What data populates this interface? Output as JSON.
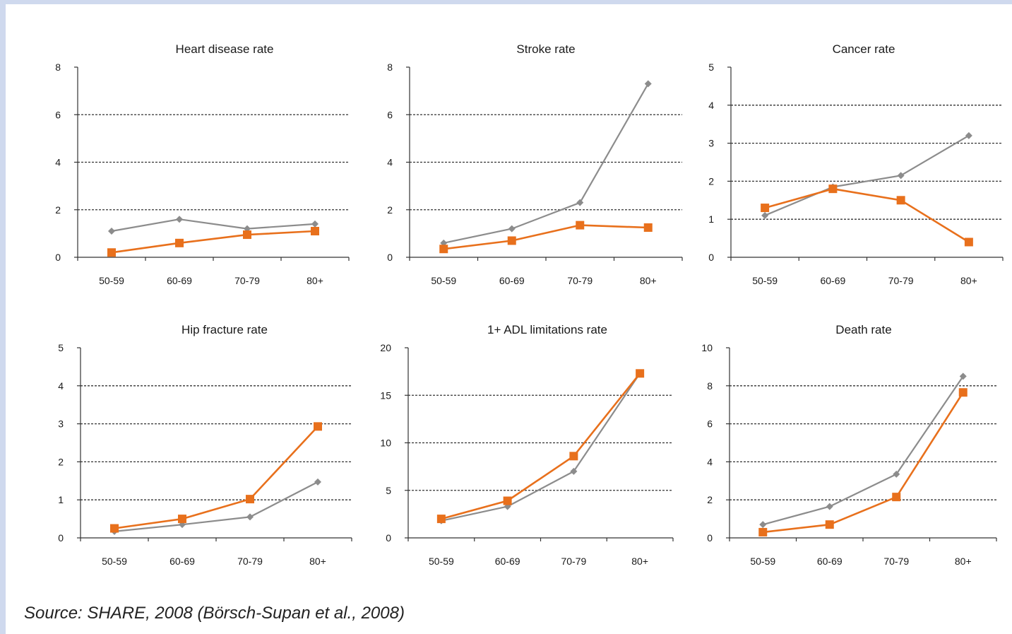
{
  "source": "Source: SHARE, 2008 (Börsch-Supan et al., 2008)",
  "colors": {
    "series_a": "#8c8c8c",
    "series_b": "#e8701c",
    "gridline": "#333333",
    "axis": "#333333"
  },
  "chart_data": [
    {
      "type": "line",
      "title": "Heart disease rate",
      "categories": [
        "50-59",
        "60-69",
        "70-79",
        "80+"
      ],
      "ylim": [
        0,
        8
      ],
      "yticks": [
        0,
        2,
        4,
        6,
        8
      ],
      "grid": "horizontal dashed",
      "legend": "none",
      "series": [
        {
          "values": [
            1.1,
            1.6,
            1.2,
            1.4
          ],
          "color": "#8c8c8c",
          "marker": "diamond"
        },
        {
          "values": [
            0.2,
            0.6,
            0.95,
            1.1
          ],
          "color": "#e8701c",
          "marker": "square"
        }
      ]
    },
    {
      "type": "line",
      "title": "Stroke rate",
      "categories": [
        "50-59",
        "60-69",
        "70-79",
        "80+"
      ],
      "ylim": [
        0,
        8
      ],
      "yticks": [
        0,
        2,
        4,
        6,
        8
      ],
      "grid": "horizontal dashed",
      "legend": "none",
      "series": [
        {
          "values": [
            0.6,
            1.2,
            2.3,
            7.3
          ],
          "color": "#8c8c8c",
          "marker": "diamond"
        },
        {
          "values": [
            0.35,
            0.7,
            1.35,
            1.25
          ],
          "color": "#e8701c",
          "marker": "square"
        }
      ]
    },
    {
      "type": "line",
      "title": "Cancer rate",
      "categories": [
        "50-59",
        "60-69",
        "70-79",
        "80+"
      ],
      "ylim": [
        0,
        5
      ],
      "yticks": [
        0,
        1,
        2,
        3,
        4,
        5
      ],
      "grid": "horizontal dashed",
      "legend": "none",
      "series": [
        {
          "values": [
            1.1,
            1.85,
            2.15,
            3.2
          ],
          "color": "#8c8c8c",
          "marker": "diamond"
        },
        {
          "values": [
            1.3,
            1.8,
            1.5,
            0.4
          ],
          "color": "#e8701c",
          "marker": "square"
        }
      ]
    },
    {
      "type": "line",
      "title": "Hip fracture rate",
      "categories": [
        "50-59",
        "60-69",
        "70-79",
        "80+"
      ],
      "ylim": [
        0,
        5
      ],
      "yticks": [
        0,
        1,
        2,
        3,
        4,
        5
      ],
      "grid": "horizontal dashed",
      "legend": "none",
      "series": [
        {
          "values": [
            0.17,
            0.35,
            0.55,
            1.47
          ],
          "color": "#8c8c8c",
          "marker": "diamond"
        },
        {
          "values": [
            0.25,
            0.5,
            1.02,
            2.93
          ],
          "color": "#e8701c",
          "marker": "square"
        }
      ]
    },
    {
      "type": "line",
      "title": "1+ ADL limitations rate",
      "categories": [
        "50-59",
        "60-69",
        "70-79",
        "80+"
      ],
      "ylim": [
        0,
        20
      ],
      "yticks": [
        0,
        5,
        10,
        15,
        20
      ],
      "grid": "horizontal dashed",
      "legend": "none",
      "series": [
        {
          "values": [
            1.8,
            3.3,
            7.0,
            17.3
          ],
          "color": "#8c8c8c",
          "marker": "diamond"
        },
        {
          "values": [
            2.0,
            3.9,
            8.6,
            17.3
          ],
          "color": "#e8701c",
          "marker": "square"
        }
      ]
    },
    {
      "type": "line",
      "title": "Death rate",
      "categories": [
        "50-59",
        "60-69",
        "70-79",
        "80+"
      ],
      "ylim": [
        0,
        10
      ],
      "yticks": [
        0,
        2,
        4,
        6,
        8,
        10
      ],
      "grid": "horizontal dashed",
      "legend": "none",
      "series": [
        {
          "values": [
            0.7,
            1.65,
            3.35,
            8.5
          ],
          "color": "#8c8c8c",
          "marker": "diamond"
        },
        {
          "values": [
            0.3,
            0.7,
            2.15,
            7.65
          ],
          "color": "#e8701c",
          "marker": "square"
        }
      ]
    }
  ]
}
